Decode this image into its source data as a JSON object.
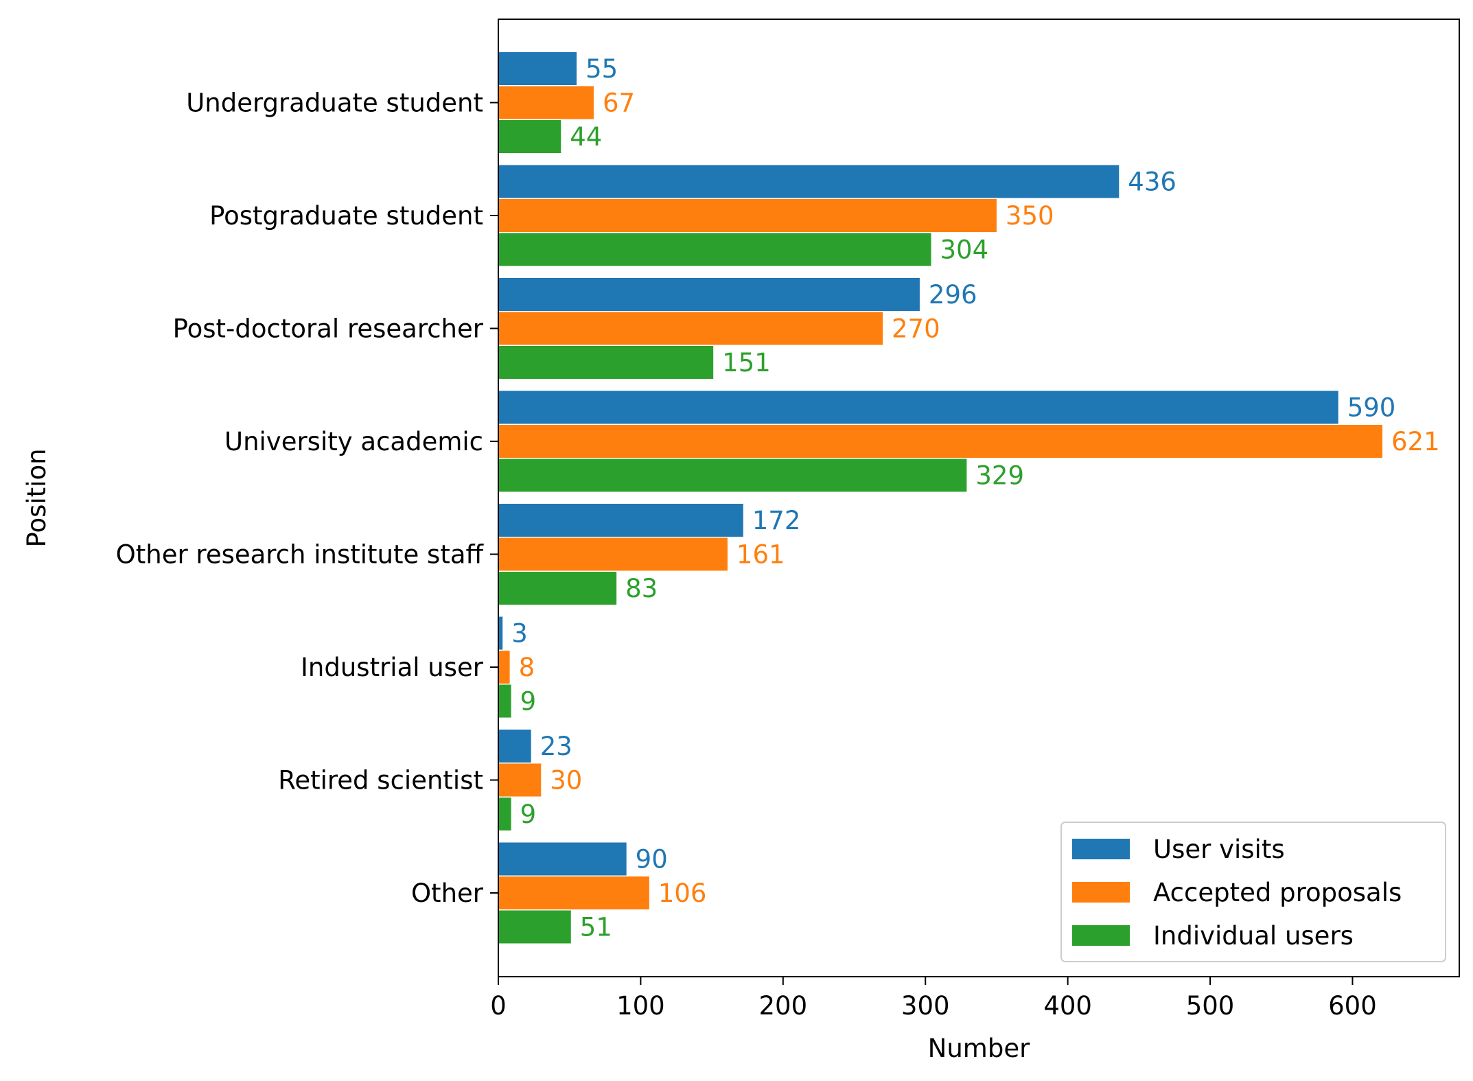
{
  "chart_data": {
    "type": "bar",
    "orientation": "horizontal",
    "title": "",
    "xlabel": "Number",
    "ylabel": "Position",
    "xlim": [
      0,
      675
    ],
    "xticks": [
      0,
      100,
      200,
      300,
      400,
      500,
      600
    ],
    "grid": false,
    "legend_position": "lower-right",
    "categories": [
      "Undergraduate student",
      "Postgraduate student",
      "Post-doctoral researcher",
      "University academic",
      "Other research institute staff",
      "Industrial user",
      "Retired scientist",
      "Other"
    ],
    "series": [
      {
        "name": "User visits",
        "color": "#1f77b4",
        "values": [
          55,
          436,
          296,
          590,
          172,
          3,
          23,
          90
        ]
      },
      {
        "name": "Accepted proposals",
        "color": "#ff7f0e",
        "values": [
          67,
          350,
          270,
          621,
          161,
          8,
          30,
          106
        ]
      },
      {
        "name": "Individual users",
        "color": "#2ca02c",
        "values": [
          44,
          304,
          151,
          329,
          83,
          9,
          9,
          51
        ]
      }
    ]
  }
}
